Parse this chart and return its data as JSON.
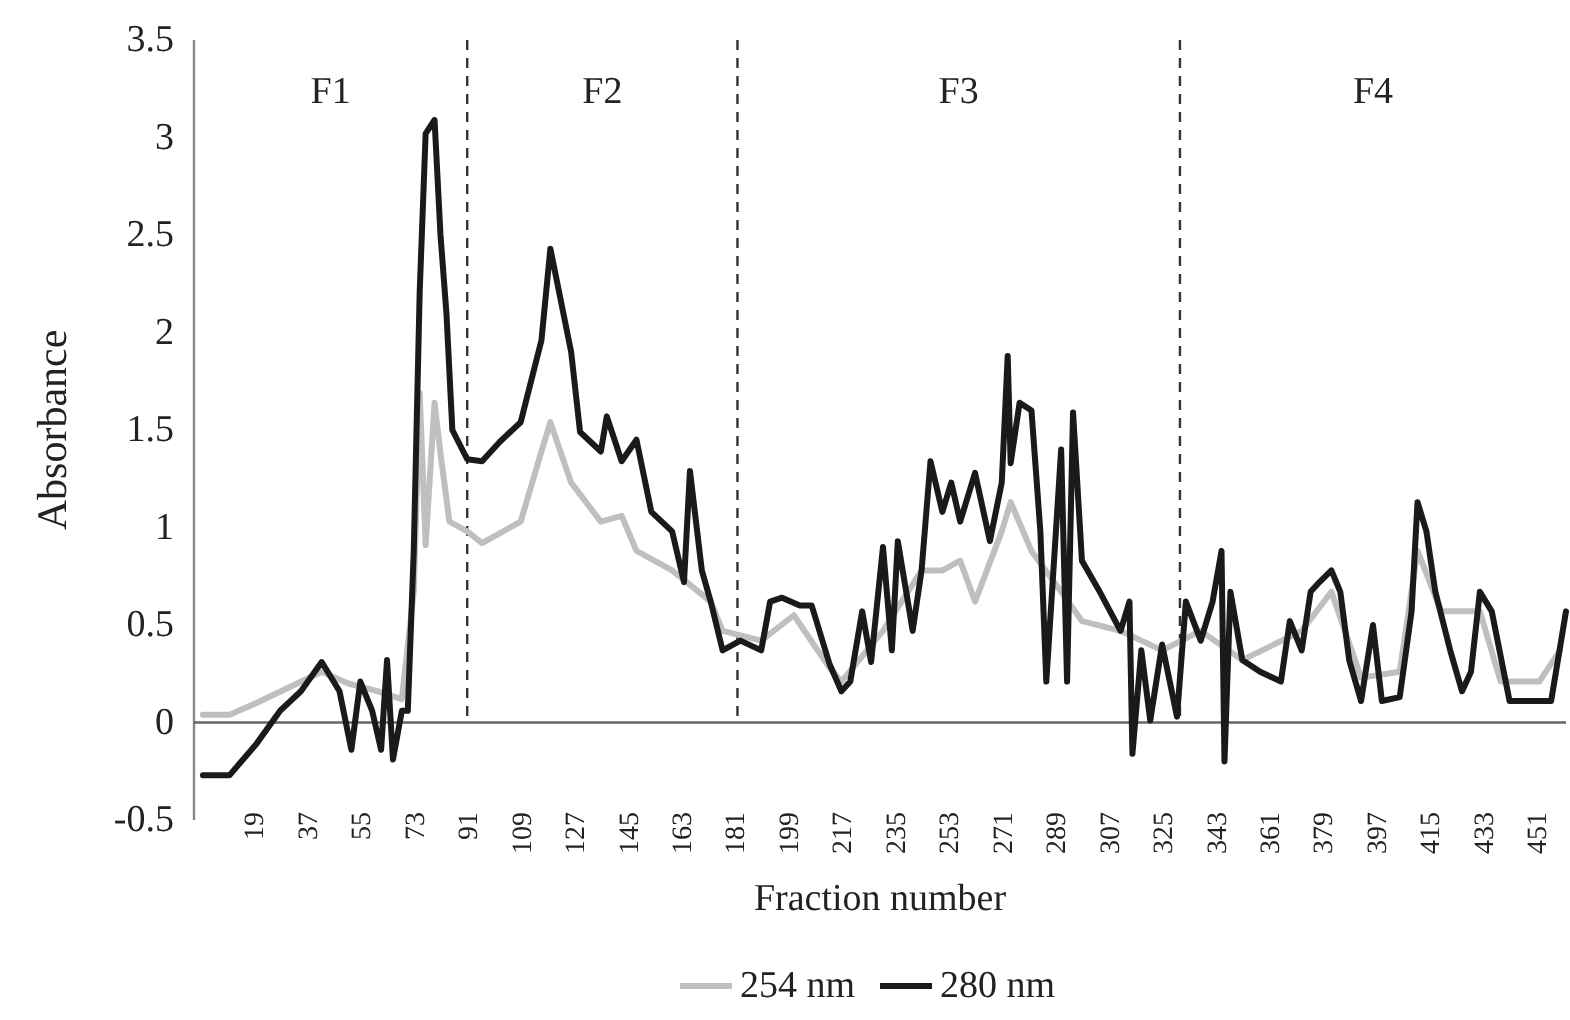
{
  "chart_data": {
    "type": "line",
    "xlabel": "Fraction number",
    "ylabel": "Absorbance",
    "xlim": [
      -2,
      460
    ],
    "xticks": [
      19,
      37,
      55,
      73,
      91,
      109,
      127,
      145,
      163,
      181,
      199,
      217,
      235,
      253,
      271,
      289,
      307,
      325,
      343,
      361,
      379,
      397,
      415,
      433,
      451
    ],
    "ylim": [
      -0.5,
      3.5
    ],
    "yticks": [
      -0.5,
      0,
      0.5,
      1,
      1.5,
      2,
      2.5,
      3,
      3.5
    ],
    "grid": false,
    "legend": "bottom",
    "marker": "none",
    "line_style": "solid",
    "ref_lines": [
      {
        "axis": "x",
        "value": 90,
        "color": "#333333",
        "line_style": "dashed"
      },
      {
        "axis": "x",
        "value": 181,
        "color": "#333333",
        "line_style": "dashed"
      },
      {
        "axis": "x",
        "value": 330,
        "color": "#333333",
        "line_style": "dashed"
      }
    ],
    "annotations": [
      "F1",
      "F2",
      "F3",
      "F4"
    ],
    "series": [
      {
        "name": "254 nm",
        "color": "#bfbfbf",
        "x": [
          1,
          10,
          19,
          41,
          50,
          60,
          68,
          72,
          74,
          76,
          79,
          81,
          84,
          90,
          95,
          108,
          115,
          118,
          125,
          135,
          142,
          147,
          159,
          172,
          176,
          189,
          200,
          212,
          216,
          230,
          243,
          250,
          256,
          261,
          270,
          273,
          280,
          290,
          297,
          310,
          324,
          337,
          351,
          371,
          381,
          391,
          404,
          410,
          418,
          431,
          438,
          451,
          458
        ],
        "values": [
          0.04,
          0.04,
          0.1,
          0.26,
          0.2,
          0.16,
          0.12,
          0.67,
          1.69,
          0.91,
          1.64,
          1.38,
          1.03,
          0.98,
          0.92,
          1.03,
          1.39,
          1.54,
          1.23,
          1.03,
          1.06,
          0.88,
          0.78,
          0.62,
          0.47,
          0.42,
          0.55,
          0.28,
          0.21,
          0.47,
          0.78,
          0.78,
          0.83,
          0.62,
          0.98,
          1.13,
          0.88,
          0.67,
          0.52,
          0.47,
          0.37,
          0.47,
          0.32,
          0.47,
          0.67,
          0.23,
          0.26,
          0.88,
          0.57,
          0.57,
          0.21,
          0.21,
          0.37
        ]
      },
      {
        "name": "280 nm",
        "color": "#1a1a1a",
        "x": [
          1,
          10,
          19,
          27,
          34,
          41,
          47,
          51,
          54,
          58,
          61,
          63,
          65,
          68,
          70,
          72,
          74,
          76,
          79,
          81,
          83,
          85,
          90,
          95,
          101,
          108,
          115,
          118,
          125,
          128,
          135,
          137,
          142,
          147,
          152,
          159,
          163,
          165,
          169,
          172,
          176,
          182,
          189,
          192,
          196,
          202,
          206,
          212,
          216,
          219,
          223,
          226,
          230,
          233,
          235,
          240,
          243,
          246,
          250,
          253,
          256,
          261,
          266,
          270,
          272,
          273,
          276,
          280,
          283,
          285,
          290,
          292,
          294,
          297,
          303,
          310,
          313,
          314,
          317,
          320,
          324,
          329,
          332,
          337,
          341,
          344,
          345,
          347,
          351,
          357,
          364,
          367,
          371,
          374,
          377,
          381,
          384,
          387,
          391,
          395,
          398,
          404,
          408,
          410,
          413,
          416,
          421,
          425,
          428,
          431,
          435,
          441,
          448,
          455,
          460
        ],
        "values": [
          -0.27,
          -0.27,
          -0.11,
          0.06,
          0.16,
          0.31,
          0.16,
          -0.14,
          0.21,
          0.06,
          -0.14,
          0.32,
          -0.19,
          0.06,
          0.06,
          0.88,
          2.21,
          3.02,
          3.09,
          2.5,
          2.1,
          1.5,
          1.35,
          1.34,
          1.44,
          1.54,
          1.96,
          2.43,
          1.9,
          1.49,
          1.39,
          1.57,
          1.34,
          1.45,
          1.08,
          0.98,
          0.72,
          1.29,
          0.78,
          0.62,
          0.37,
          0.42,
          0.37,
          0.62,
          0.64,
          0.6,
          0.6,
          0.3,
          0.16,
          0.21,
          0.57,
          0.31,
          0.9,
          0.37,
          0.93,
          0.47,
          0.78,
          1.34,
          1.08,
          1.23,
          1.03,
          1.28,
          0.93,
          1.23,
          1.88,
          1.33,
          1.64,
          1.6,
          0.98,
          0.21,
          1.4,
          0.21,
          1.59,
          0.83,
          0.67,
          0.47,
          0.62,
          -0.16,
          0.37,
          0.01,
          0.4,
          0.03,
          0.62,
          0.42,
          0.62,
          0.88,
          -0.2,
          0.67,
          0.32,
          0.26,
          0.21,
          0.52,
          0.37,
          0.67,
          0.72,
          0.78,
          0.67,
          0.32,
          0.11,
          0.5,
          0.11,
          0.13,
          0.57,
          1.13,
          0.98,
          0.67,
          0.37,
          0.16,
          0.26,
          0.67,
          0.57,
          0.11,
          0.11,
          0.11,
          0.57
        ]
      }
    ]
  }
}
